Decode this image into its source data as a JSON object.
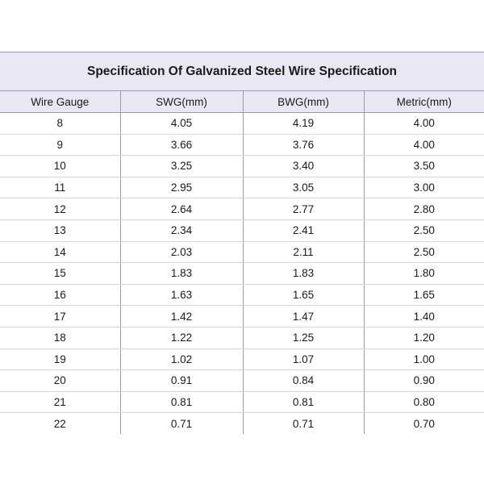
{
  "title": "Specification Of Galvanized Steel Wire Specification",
  "columns": [
    "Wire Gauge",
    "SWG(mm)",
    "BWG(mm)",
    "Metric(mm)"
  ],
  "rows": [
    [
      "8",
      "4.05",
      "4.19",
      "4.00"
    ],
    [
      "9",
      "3.66",
      "3.76",
      "4.00"
    ],
    [
      "10",
      "3.25",
      "3.40",
      "3.50"
    ],
    [
      "11",
      "2.95",
      "3.05",
      "3.00"
    ],
    [
      "12",
      "2.64",
      "2.77",
      "2.80"
    ],
    [
      "13",
      "2.34",
      "2.41",
      "2.50"
    ],
    [
      "14",
      "2.03",
      "2.11",
      "2.50"
    ],
    [
      "15",
      "1.83",
      "1.83",
      "1.80"
    ],
    [
      "16",
      "1.63",
      "1.65",
      "1.65"
    ],
    [
      "17",
      "1.42",
      "1.47",
      "1.40"
    ],
    [
      "18",
      "1.22",
      "1.25",
      "1.20"
    ],
    [
      "19",
      "1.02",
      "1.07",
      "1.00"
    ],
    [
      "20",
      "0.91",
      "0.84",
      "0.90"
    ],
    [
      "21",
      "0.81",
      "0.81",
      "0.80"
    ],
    [
      "22",
      "0.71",
      "0.71",
      "0.70"
    ]
  ],
  "colors": {
    "header_bg": "#e8e8f5",
    "border": "#9a9ab8",
    "row_divider": "#d4d4e0"
  }
}
